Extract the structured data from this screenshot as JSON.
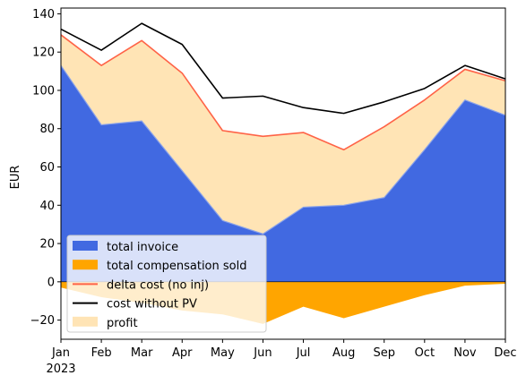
{
  "chart_data": {
    "type": "area",
    "ylabel": "EUR",
    "xlabel": "",
    "categories": [
      "Jan",
      "Feb",
      "Mar",
      "Apr",
      "May",
      "Jun",
      "Jul",
      "Aug",
      "Sep",
      "Oct",
      "Nov",
      "Dec"
    ],
    "x_year_label": "2023",
    "ylim": [
      -30,
      143
    ],
    "yticks": [
      -20,
      0,
      20,
      40,
      60,
      80,
      100,
      120,
      140
    ],
    "ytick_labels": [
      "−20",
      "0",
      "20",
      "40",
      "60",
      "80",
      "100",
      "120",
      "140"
    ],
    "grid": false,
    "legend_position": "lower-left",
    "series": [
      {
        "name": "total invoice",
        "kind": "area",
        "color": "#4169e1",
        "values": [
          113,
          82,
          84,
          58,
          32,
          25,
          39,
          40,
          44,
          69,
          95,
          87
        ]
      },
      {
        "name": "total compensation sold",
        "kind": "area",
        "color": "#ffa500",
        "values": [
          -3,
          -8,
          -11,
          -15,
          -17,
          -22,
          -13,
          -19,
          -13,
          -7,
          -2,
          -1
        ]
      },
      {
        "name": "delta cost (no inj)",
        "kind": "line",
        "color": "#ff6347",
        "values": [
          129,
          113,
          126,
          109,
          79,
          76,
          78,
          69,
          81,
          95,
          111,
          105
        ]
      },
      {
        "name": "cost without PV",
        "kind": "line",
        "color": "#000000",
        "values": [
          132,
          121,
          135,
          124,
          96,
          97,
          91,
          88,
          94,
          101,
          113,
          106
        ]
      },
      {
        "name": "profit",
        "kind": "area",
        "color": "#ffe4b5",
        "values": [
          16,
          31,
          42,
          51,
          47,
          51,
          39,
          29,
          37,
          26,
          16,
          18
        ]
      }
    ]
  }
}
